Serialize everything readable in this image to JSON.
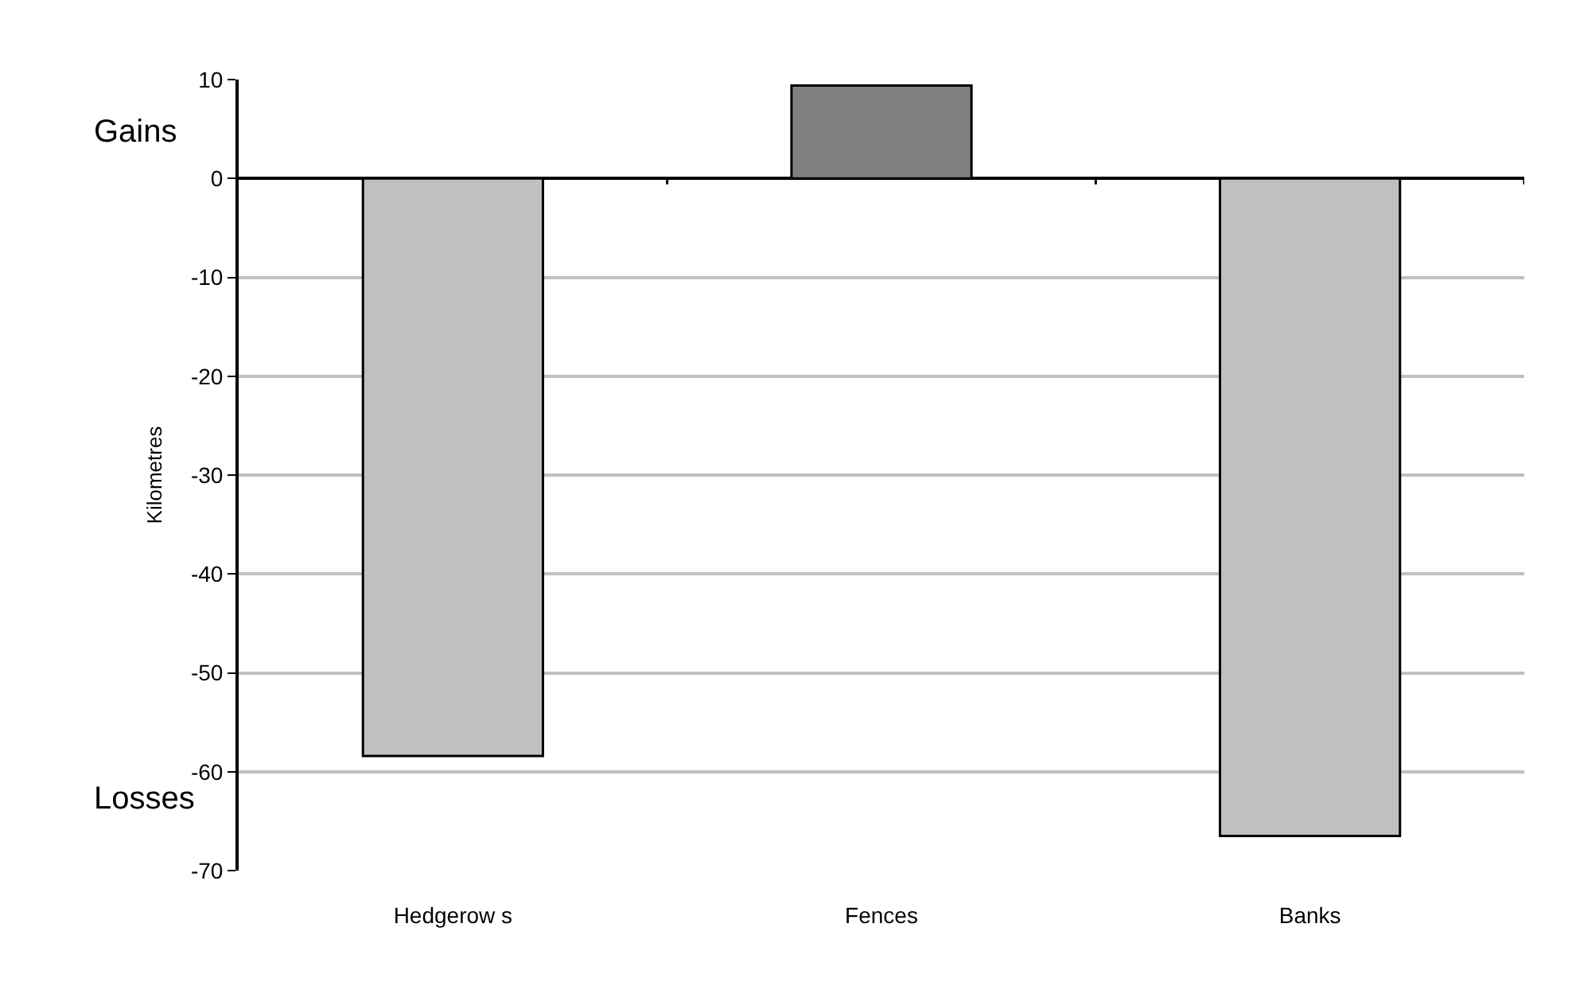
{
  "chart_data": {
    "type": "bar",
    "ylabel": "Kilometres",
    "categories": [
      "Hedgerow s",
      "Fences",
      "Banks"
    ],
    "values": [
      -58.4,
      9.4,
      -66.5
    ],
    "colors": [
      "#c0c0c0",
      "#808080",
      "#c0c0c0"
    ],
    "ylim": [
      -70,
      10
    ],
    "yticks": [
      -70,
      -60,
      -50,
      -40,
      -30,
      -20,
      -10,
      0,
      10
    ],
    "grid": "y",
    "annotations": [
      "Gains",
      "Losses"
    ]
  }
}
